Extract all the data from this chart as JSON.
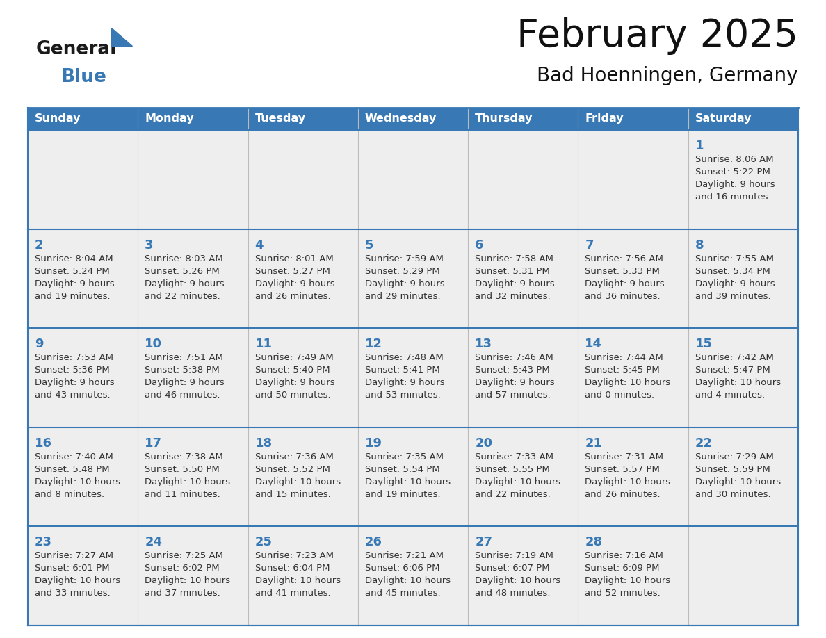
{
  "title": "February 2025",
  "subtitle": "Bad Hoenningen, Germany",
  "header_bg": "#3878B4",
  "header_text_color": "#FFFFFF",
  "cell_bg": "#EEEEEE",
  "border_color": "#3878B4",
  "day_num_color": "#3878B4",
  "text_color": "#333333",
  "days_of_week": [
    "Sunday",
    "Monday",
    "Tuesday",
    "Wednesday",
    "Thursday",
    "Friday",
    "Saturday"
  ],
  "calendar": [
    [
      null,
      null,
      null,
      null,
      null,
      null,
      {
        "day": 1,
        "sunrise": "8:06 AM",
        "sunset": "5:22 PM",
        "daylight": "9 hours",
        "daylight2": "and 16 minutes."
      }
    ],
    [
      {
        "day": 2,
        "sunrise": "8:04 AM",
        "sunset": "5:24 PM",
        "daylight": "9 hours",
        "daylight2": "and 19 minutes."
      },
      {
        "day": 3,
        "sunrise": "8:03 AM",
        "sunset": "5:26 PM",
        "daylight": "9 hours",
        "daylight2": "and 22 minutes."
      },
      {
        "day": 4,
        "sunrise": "8:01 AM",
        "sunset": "5:27 PM",
        "daylight": "9 hours",
        "daylight2": "and 26 minutes."
      },
      {
        "day": 5,
        "sunrise": "7:59 AM",
        "sunset": "5:29 PM",
        "daylight": "9 hours",
        "daylight2": "and 29 minutes."
      },
      {
        "day": 6,
        "sunrise": "7:58 AM",
        "sunset": "5:31 PM",
        "daylight": "9 hours",
        "daylight2": "and 32 minutes."
      },
      {
        "day": 7,
        "sunrise": "7:56 AM",
        "sunset": "5:33 PM",
        "daylight": "9 hours",
        "daylight2": "and 36 minutes."
      },
      {
        "day": 8,
        "sunrise": "7:55 AM",
        "sunset": "5:34 PM",
        "daylight": "9 hours",
        "daylight2": "and 39 minutes."
      }
    ],
    [
      {
        "day": 9,
        "sunrise": "7:53 AM",
        "sunset": "5:36 PM",
        "daylight": "9 hours",
        "daylight2": "and 43 minutes."
      },
      {
        "day": 10,
        "sunrise": "7:51 AM",
        "sunset": "5:38 PM",
        "daylight": "9 hours",
        "daylight2": "and 46 minutes."
      },
      {
        "day": 11,
        "sunrise": "7:49 AM",
        "sunset": "5:40 PM",
        "daylight": "9 hours",
        "daylight2": "and 50 minutes."
      },
      {
        "day": 12,
        "sunrise": "7:48 AM",
        "sunset": "5:41 PM",
        "daylight": "9 hours",
        "daylight2": "and 53 minutes."
      },
      {
        "day": 13,
        "sunrise": "7:46 AM",
        "sunset": "5:43 PM",
        "daylight": "9 hours",
        "daylight2": "and 57 minutes."
      },
      {
        "day": 14,
        "sunrise": "7:44 AM",
        "sunset": "5:45 PM",
        "daylight": "10 hours",
        "daylight2": "and 0 minutes."
      },
      {
        "day": 15,
        "sunrise": "7:42 AM",
        "sunset": "5:47 PM",
        "daylight": "10 hours",
        "daylight2": "and 4 minutes."
      }
    ],
    [
      {
        "day": 16,
        "sunrise": "7:40 AM",
        "sunset": "5:48 PM",
        "daylight": "10 hours",
        "daylight2": "and 8 minutes."
      },
      {
        "day": 17,
        "sunrise": "7:38 AM",
        "sunset": "5:50 PM",
        "daylight": "10 hours",
        "daylight2": "and 11 minutes."
      },
      {
        "day": 18,
        "sunrise": "7:36 AM",
        "sunset": "5:52 PM",
        "daylight": "10 hours",
        "daylight2": "and 15 minutes."
      },
      {
        "day": 19,
        "sunrise": "7:35 AM",
        "sunset": "5:54 PM",
        "daylight": "10 hours",
        "daylight2": "and 19 minutes."
      },
      {
        "day": 20,
        "sunrise": "7:33 AM",
        "sunset": "5:55 PM",
        "daylight": "10 hours",
        "daylight2": "and 22 minutes."
      },
      {
        "day": 21,
        "sunrise": "7:31 AM",
        "sunset": "5:57 PM",
        "daylight": "10 hours",
        "daylight2": "and 26 minutes."
      },
      {
        "day": 22,
        "sunrise": "7:29 AM",
        "sunset": "5:59 PM",
        "daylight": "10 hours",
        "daylight2": "and 30 minutes."
      }
    ],
    [
      {
        "day": 23,
        "sunrise": "7:27 AM",
        "sunset": "6:01 PM",
        "daylight": "10 hours",
        "daylight2": "and 33 minutes."
      },
      {
        "day": 24,
        "sunrise": "7:25 AM",
        "sunset": "6:02 PM",
        "daylight": "10 hours",
        "daylight2": "and 37 minutes."
      },
      {
        "day": 25,
        "sunrise": "7:23 AM",
        "sunset": "6:04 PM",
        "daylight": "10 hours",
        "daylight2": "and 41 minutes."
      },
      {
        "day": 26,
        "sunrise": "7:21 AM",
        "sunset": "6:06 PM",
        "daylight": "10 hours",
        "daylight2": "and 45 minutes."
      },
      {
        "day": 27,
        "sunrise": "7:19 AM",
        "sunset": "6:07 PM",
        "daylight": "10 hours",
        "daylight2": "and 48 minutes."
      },
      {
        "day": 28,
        "sunrise": "7:16 AM",
        "sunset": "6:09 PM",
        "daylight": "10 hours",
        "daylight2": "and 52 minutes."
      },
      null
    ]
  ],
  "logo_general_color": "#1a1a1a",
  "logo_blue_color": "#3878B4",
  "figsize": [
    11.88,
    9.18
  ],
  "dpi": 100
}
